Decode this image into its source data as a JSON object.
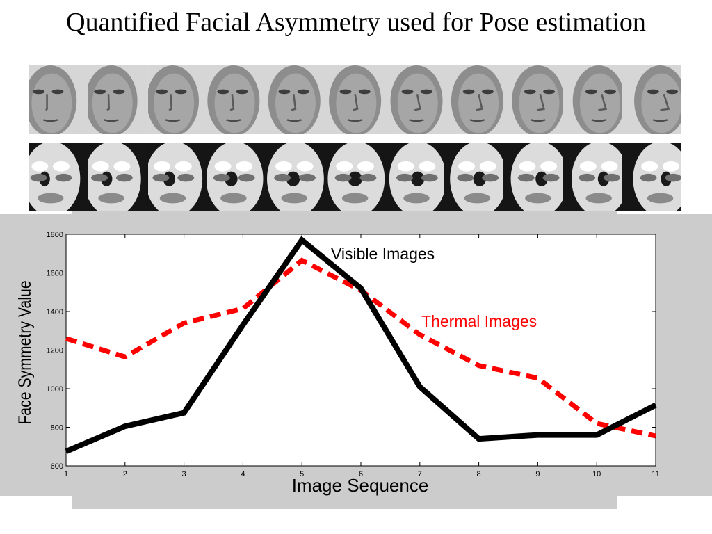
{
  "slide": {
    "title": "Quantified Facial Asymmetry used for Pose estimation"
  },
  "images": {
    "visible_strip_count": 11,
    "thermal_strip_count": 11
  },
  "chart_data": {
    "type": "line",
    "title": "",
    "xlabel": "Image Sequence",
    "ylabel": "Face Symmetry Value",
    "x": [
      1,
      2,
      3,
      4,
      5,
      6,
      7,
      8,
      9,
      10,
      11
    ],
    "xlim": [
      1,
      11
    ],
    "ylim": [
      600,
      1800
    ],
    "xticks": [
      1,
      2,
      3,
      4,
      5,
      6,
      7,
      8,
      9,
      10,
      11
    ],
    "yticks": [
      600,
      800,
      1000,
      1200,
      1400,
      1600,
      1800
    ],
    "grid": false,
    "series": [
      {
        "name": "Visible Images",
        "color": "#000000",
        "style": "solid",
        "values": [
          675,
          805,
          875,
          1330,
          1770,
          1520,
          1010,
          740,
          760,
          760,
          915
        ]
      },
      {
        "name": "Thermal Images",
        "color": "#ff0000",
        "style": "dashed",
        "values": [
          1260,
          1165,
          1340,
          1415,
          1665,
          1510,
          1280,
          1120,
          1055,
          820,
          755
        ]
      }
    ]
  }
}
